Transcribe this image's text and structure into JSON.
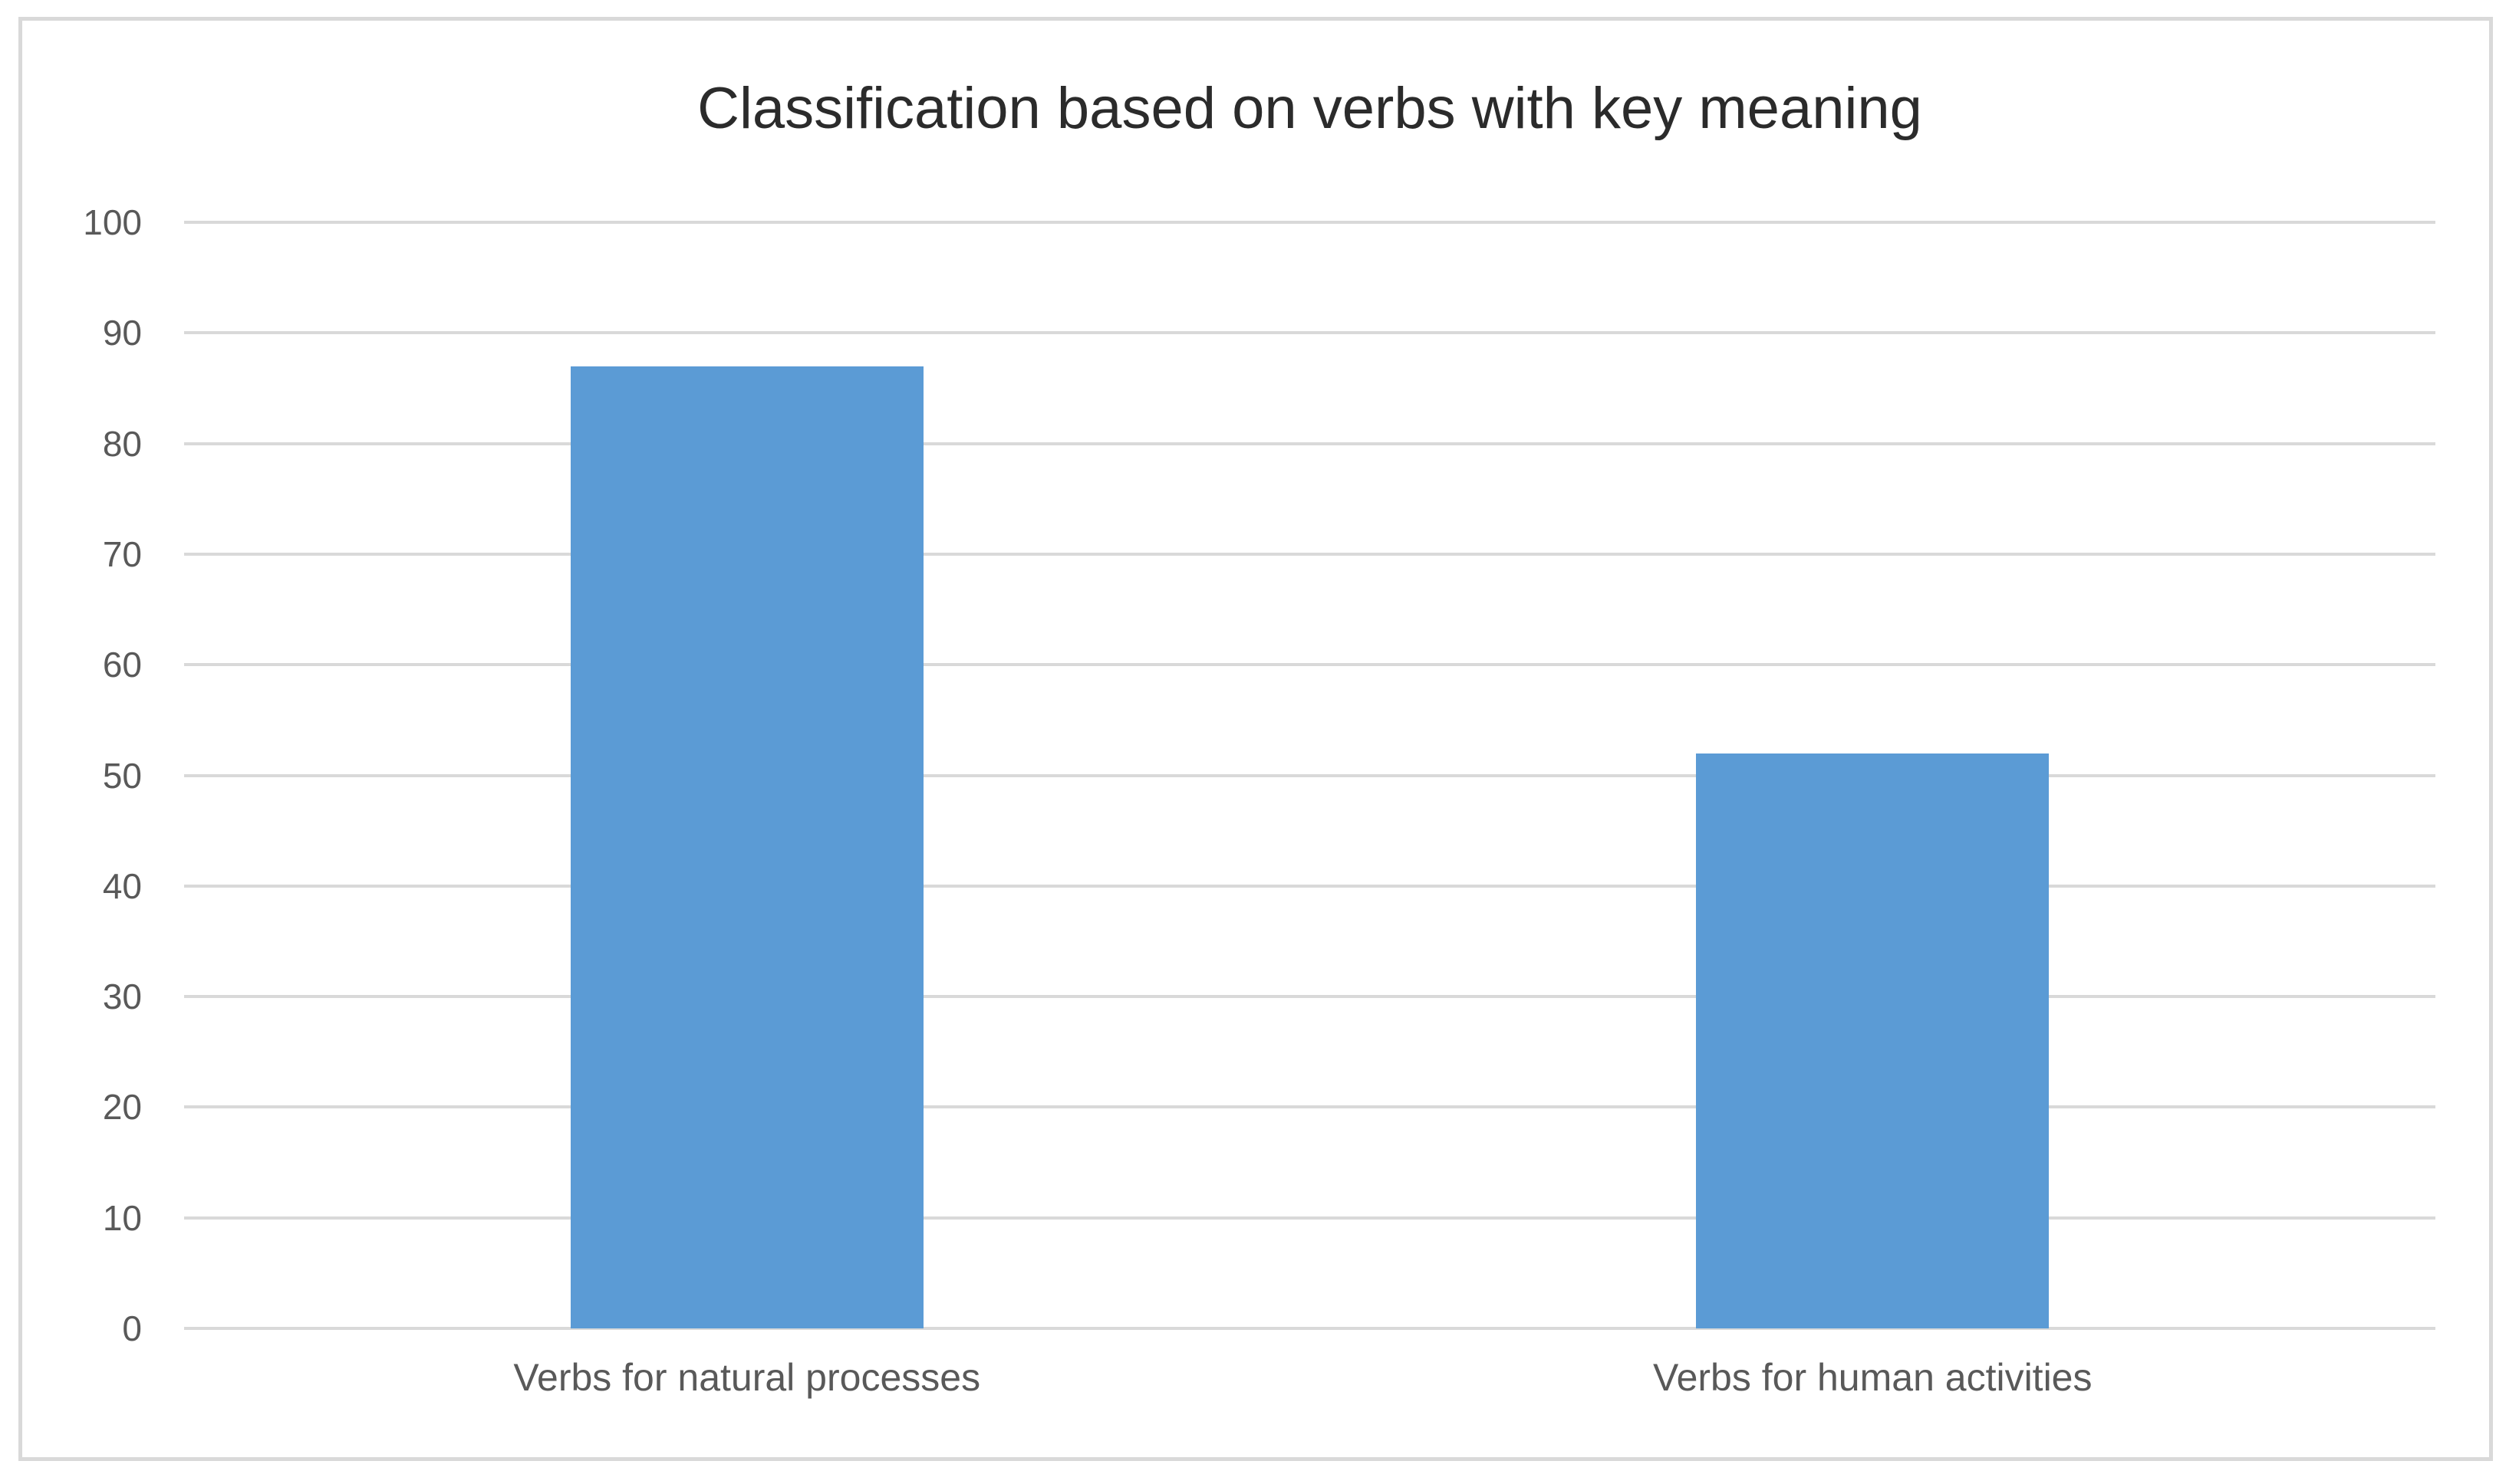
{
  "window": {
    "background_color": "#ffffff",
    "frame_border_color": "#d9d9d9"
  },
  "chart_data": {
    "type": "bar",
    "title": "Classification based on verbs with key meaning",
    "categories": [
      "Verbs for natural processes",
      "Verbs for human activities"
    ],
    "values": [
      87,
      52
    ],
    "series": [
      {
        "name": "",
        "values": [
          87,
          52
        ]
      }
    ],
    "xlabel": "",
    "ylabel": "",
    "ylim": [
      0,
      100
    ],
    "ytick_step": 10,
    "ytick_labels": [
      "0",
      "10",
      "20",
      "30",
      "40",
      "50",
      "60",
      "70",
      "80",
      "90",
      "100"
    ],
    "grid": true,
    "legend": false,
    "legend_position": "none",
    "bar_color": "#5b9bd5",
    "gridline_color": "#d9d9d9",
    "axis_label_color": "#595959",
    "title_color": "#2b2b2b"
  }
}
